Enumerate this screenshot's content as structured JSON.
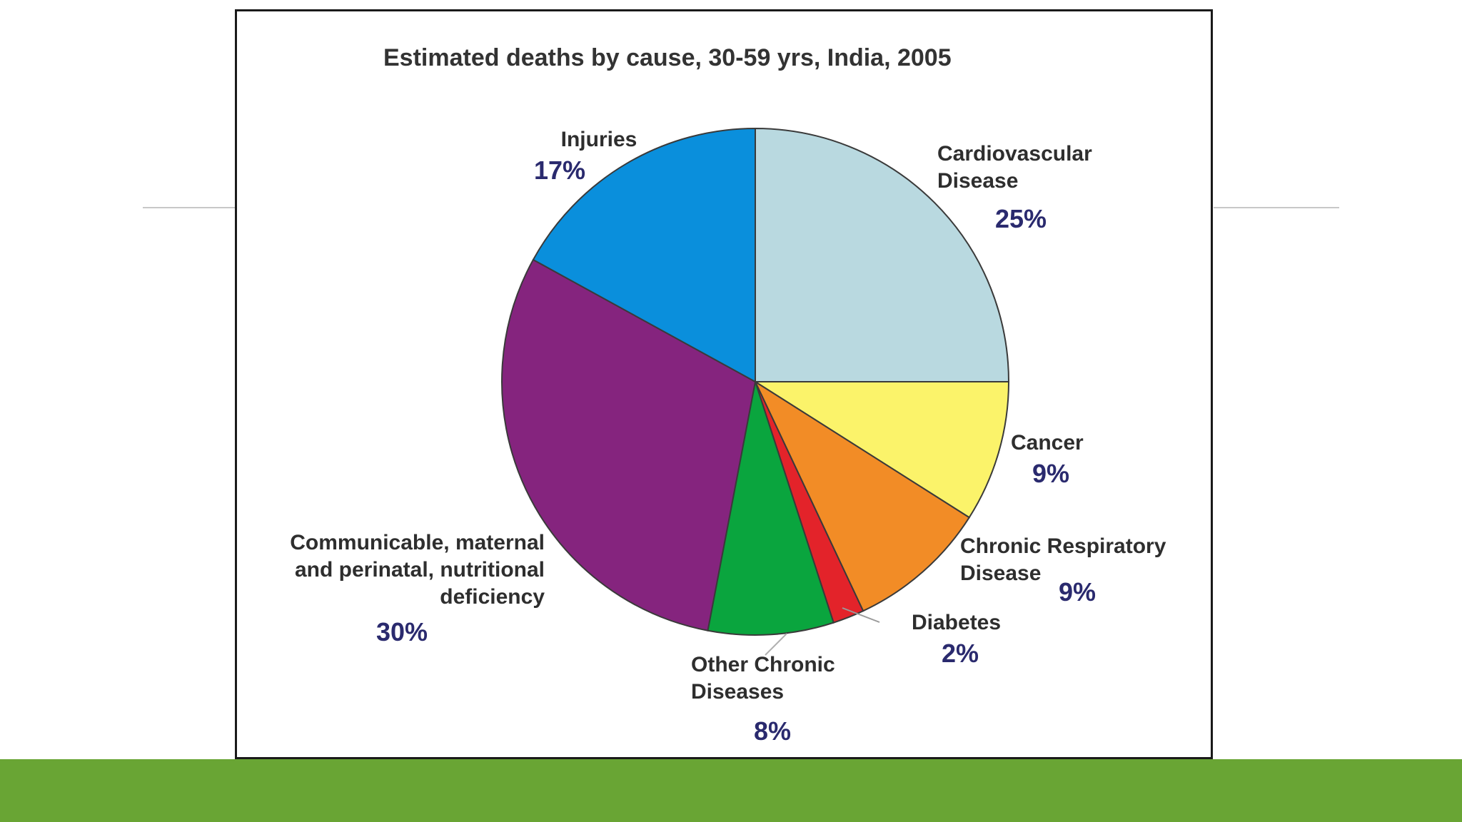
{
  "chart_data": {
    "type": "pie",
    "title": "Estimated deaths by cause, 30-59 yrs, India, 2005",
    "slices": [
      {
        "label": "Cardiovascular Disease",
        "label_lines": [
          "Cardiovascular",
          "Disease"
        ],
        "value": 25,
        "value_label": "25%",
        "color": "#b9d9e0"
      },
      {
        "label": "Cancer",
        "label_lines": [
          "Cancer"
        ],
        "value": 9,
        "value_label": "9%",
        "color": "#fbf36a"
      },
      {
        "label": "Chronic Respiratory Disease",
        "label_lines": [
          "Chronic Respiratory",
          "Disease"
        ],
        "value": 9,
        "value_label": "9%",
        "color": "#f28c26"
      },
      {
        "label": "Diabetes",
        "label_lines": [
          "Diabetes"
        ],
        "value": 2,
        "value_label": "2%",
        "color": "#e3232a"
      },
      {
        "label": "Other Chronic Diseases",
        "label_lines": [
          "Other Chronic",
          "Diseases"
        ],
        "value": 8,
        "value_label": "8%",
        "color": "#0aa53e"
      },
      {
        "label": "Communicable, maternal and perinatal, nutritional deficiency",
        "label_lines": [
          "Communicable, maternal",
          "and perinatal, nutritional",
          "deficiency"
        ],
        "value": 30,
        "value_label": "30%",
        "color": "#85247e"
      },
      {
        "label": "Injuries",
        "label_lines": [
          "Injuries"
        ],
        "value": 17,
        "value_label": "17%",
        "color": "#0a8fdc"
      }
    ],
    "start_angle": "12 o'clock",
    "direction": "clockwise",
    "legend": "none"
  }
}
